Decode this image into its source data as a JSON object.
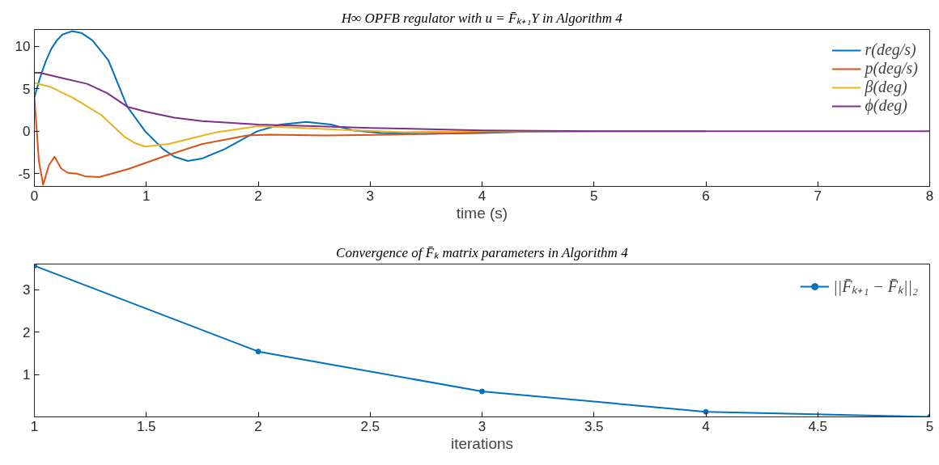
{
  "chart_data": [
    {
      "type": "line",
      "title": "H∞ OPFB regulator with u = F̄ₖ₊₁Y in Algorithm 4",
      "xlabel": "time (s)",
      "xlim": [
        0,
        8
      ],
      "xticks": [
        0,
        1,
        2,
        3,
        4,
        5,
        6,
        7,
        8
      ],
      "ylim": [
        -6.5,
        12
      ],
      "yticks": [
        -5,
        0,
        5,
        10
      ],
      "grid": false,
      "legend": "top right",
      "marker": "none",
      "series": [
        {
          "name": "r(deg/s)",
          "color": "#0072bd",
          "x": [
            0,
            0.05,
            0.1,
            0.15,
            0.2,
            0.25,
            0.335,
            0.42,
            0.52,
            0.66,
            0.83,
            0.99,
            1.15,
            1.25,
            1.37,
            1.5,
            1.7,
            1.99,
            2.2,
            2.43,
            2.65,
            2.85,
            3.1,
            3.5,
            4,
            4.5
          ],
          "values": [
            4,
            6.3,
            8.2,
            9.7,
            10.7,
            11.4,
            11.8,
            11.6,
            10.7,
            8.4,
            2.9,
            0,
            -2.1,
            -3,
            -3.5,
            -3.2,
            -2.1,
            0,
            0.8,
            1.1,
            0.8,
            0.1,
            -0.2,
            -0.3,
            -0.2,
            0
          ]
        },
        {
          "name": "p(deg/s)",
          "color": "#d95319",
          "x": [
            0,
            0.04,
            0.078,
            0.13,
            0.18,
            0.24,
            0.3,
            0.38,
            0.45,
            0.58,
            0.85,
            1.15,
            1.5,
            1.9,
            2.1,
            2.6,
            3.2,
            4,
            5,
            6
          ],
          "values": [
            4,
            -3.5,
            -6.3,
            -4,
            -3,
            -4.4,
            -4.9,
            -5,
            -5.3,
            -5.4,
            -4.4,
            -3,
            -1.5,
            -0.5,
            -0.4,
            -0.5,
            -0.4,
            -0.1,
            0,
            0
          ]
        },
        {
          "name": "β(deg)",
          "color": "#edb120",
          "x": [
            0,
            0.15,
            0.35,
            0.6,
            0.81,
            0.9,
            0.99,
            1.2,
            1.63,
            2.0,
            2.4,
            2.7,
            3.3,
            4,
            5
          ],
          "values": [
            5.7,
            5.2,
            3.9,
            1.9,
            -0.7,
            -1.4,
            -1.8,
            -1.5,
            -0.1,
            0.6,
            0.4,
            0.2,
            -0.1,
            0,
            0
          ]
        },
        {
          "name": "ϕ(deg)",
          "color": "#7e2f8e",
          "x": [
            0,
            0.05,
            0.27,
            0.47,
            0.65,
            0.83,
            1.0,
            1.25,
            1.5,
            2.0,
            2.5,
            3.0,
            4.0,
            5,
            6,
            7,
            8
          ],
          "values": [
            6.9,
            6.9,
            6.2,
            5.6,
            4.5,
            2.9,
            2.3,
            1.6,
            1.2,
            0.8,
            0.6,
            0.4,
            0.1,
            0,
            0,
            0,
            0
          ]
        }
      ]
    },
    {
      "type": "line",
      "title": "Convergence of F̄ₖ matrix parameters in Algorithm 4",
      "xlabel": "iterations",
      "xlim": [
        1,
        5
      ],
      "xticks": [
        1,
        1.5,
        2,
        2.5,
        3,
        3.5,
        4,
        4.5,
        5
      ],
      "ylim": [
        0,
        3.6
      ],
      "yticks": [
        1,
        2,
        3
      ],
      "grid": false,
      "legend": "top right",
      "marker": "circle",
      "series": [
        {
          "name": "||F̄ₖ₊₁ − F̄ₖ||₂",
          "color": "#0072bd",
          "x": [
            1,
            2,
            3,
            4,
            5
          ],
          "values": [
            3.56,
            1.54,
            0.6,
            0.12,
            0.0
          ]
        }
      ]
    }
  ]
}
